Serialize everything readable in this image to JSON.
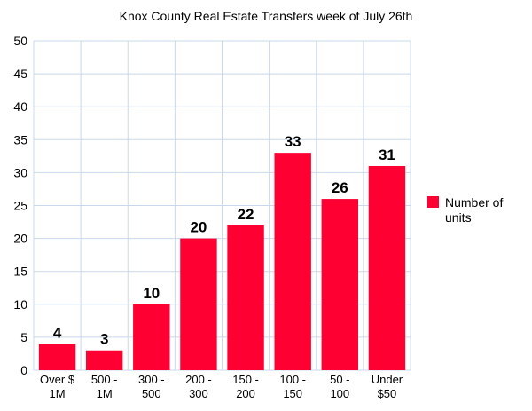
{
  "chart_data": {
    "type": "bar",
    "title": "Knox County Real Estate Transfers week of July 26th",
    "xlabel": "",
    "ylabel": "",
    "ylim": [
      0,
      50
    ],
    "yticks": [
      0,
      5,
      10,
      15,
      20,
      25,
      30,
      35,
      40,
      45,
      50
    ],
    "grid": true,
    "legend_position": "right",
    "categories": [
      [
        "Over $",
        "1M"
      ],
      [
        "500 -",
        "1M"
      ],
      [
        "300 -",
        "500"
      ],
      [
        "200 -",
        "300"
      ],
      [
        "150 -",
        "200"
      ],
      [
        "100 -",
        "150"
      ],
      [
        "50 -",
        "100"
      ],
      [
        "Under",
        "$50"
      ]
    ],
    "series": [
      {
        "name": "Number of units",
        "legend_lines": [
          "Number of",
          "units"
        ],
        "color": "#ff0033",
        "values": [
          4,
          3,
          10,
          20,
          22,
          33,
          26,
          31
        ]
      }
    ],
    "gridline_color": "#c9d8ec"
  }
}
